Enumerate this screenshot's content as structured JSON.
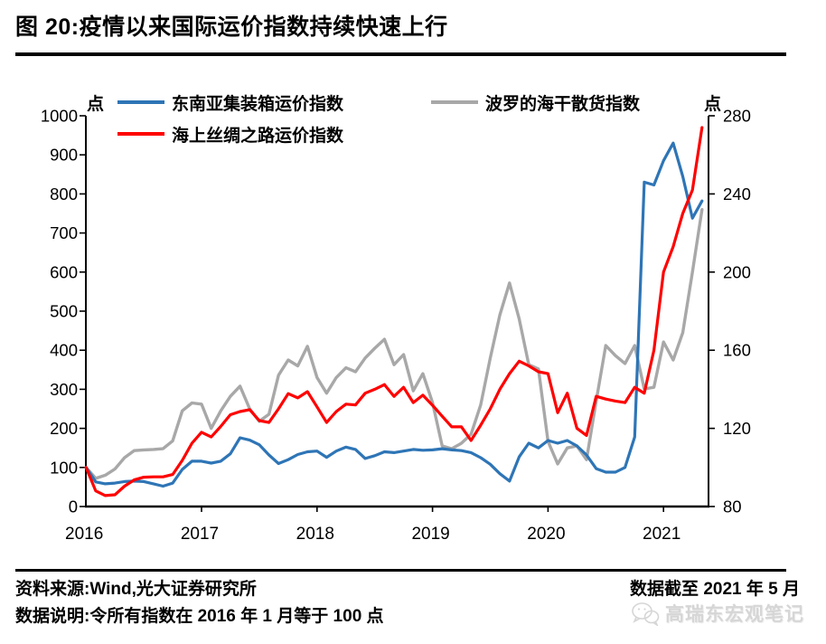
{
  "title": "图 20:疫情以来国际运价指数持续快速上行",
  "axis_units": {
    "left": "点",
    "right": "点"
  },
  "legend": {
    "items": [
      {
        "label": "东南亚集装箱运价指数",
        "color": "#2E75B6"
      },
      {
        "label": "波罗的海干散货指数",
        "color": "#A8A8A8"
      },
      {
        "label": "海上丝绸之路运价指数",
        "color": "#FF0000"
      }
    ]
  },
  "footer": {
    "source": "资料来源:Wind,光大证券研究所",
    "cutoff": "数据截至 2021 年 5 月",
    "note": "数据说明:令所有指数在 2016 年 1 月等于 100 点",
    "watermark": "高瑞东宏观笔记"
  },
  "chart_data": {
    "type": "line",
    "title": "图 20:疫情以来国际运价指数持续快速上行",
    "x_start": "2016-01",
    "x_end": "2021-05",
    "x_frequency": "monthly",
    "x_tick_labels": [
      "2016",
      "2017",
      "2018",
      "2019",
      "2020",
      "2021"
    ],
    "x_tick_month_index": [
      0,
      12,
      24,
      36,
      48,
      60
    ],
    "left_axis": {
      "label": "点",
      "min": 0,
      "max": 1000,
      "step": 100
    },
    "right_axis": {
      "label": "点",
      "min": 80,
      "max": 280,
      "step": 40
    },
    "grid": false,
    "legend_position": "top",
    "normalization_note": "令所有指数在 2016 年 1 月等于 100 点",
    "series": [
      {
        "name": "波罗的海干散货指数",
        "color": "#A8A8A8",
        "axis": "right",
        "z": 1,
        "values": [
          100,
          72,
          80,
          96,
          125,
          143,
          145,
          146,
          148,
          168,
          245,
          265,
          262,
          200,
          245,
          282,
          308,
          250,
          218,
          236,
          336,
          375,
          360,
          410,
          330,
          290,
          330,
          355,
          345,
          380,
          405,
          428,
          363,
          389,
          296,
          340,
          266,
          155,
          148,
          162,
          185,
          260,
          380,
          490,
          572,
          480,
          363,
          352,
          167,
          109,
          150,
          155,
          120,
          270,
          412,
          386,
          366,
          412,
          301,
          305,
          421,
          375,
          445,
          600,
          760
        ]
      },
      {
        "name": "东南亚集装箱运价指数",
        "color": "#2E75B6",
        "axis": "left",
        "z": 2,
        "values": [
          100,
          63,
          58,
          60,
          64,
          65,
          64,
          58,
          52,
          60,
          95,
          116,
          116,
          111,
          116,
          135,
          176,
          170,
          158,
          132,
          110,
          120,
          133,
          140,
          142,
          126,
          142,
          152,
          146,
          123,
          130,
          140,
          138,
          142,
          146,
          144,
          145,
          148,
          145,
          143,
          138,
          125,
          108,
          84,
          65,
          127,
          162,
          150,
          169,
          162,
          169,
          155,
          132,
          97,
          88,
          88,
          100,
          178,
          830,
          823,
          885,
          930,
          845,
          738,
          782
        ]
      },
      {
        "name": "海上丝绸之路运价指数",
        "color": "#FF0000",
        "axis": "left",
        "z": 3,
        "values": [
          100,
          40,
          28,
          30,
          52,
          68,
          75,
          76,
          76,
          82,
          118,
          162,
          190,
          178,
          205,
          235,
          243,
          248,
          220,
          215,
          250,
          289,
          278,
          294,
          255,
          215,
          243,
          262,
          260,
          290,
          300,
          312,
          282,
          305,
          266,
          285,
          259,
          231,
          204,
          204,
          169,
          208,
          250,
          300,
          340,
          372,
          360,
          345,
          340,
          240,
          290,
          200,
          182,
          282,
          275,
          270,
          266,
          305,
          290,
          400,
          600,
          665,
          750,
          810,
          970
        ]
      }
    ]
  }
}
